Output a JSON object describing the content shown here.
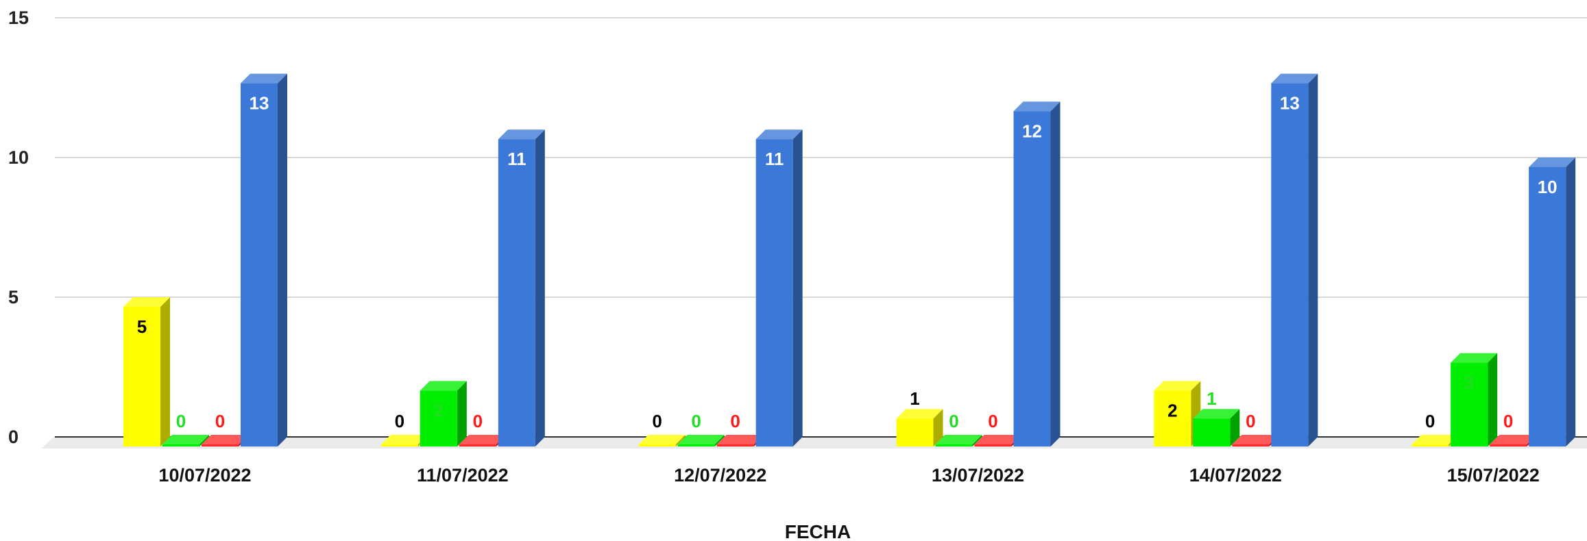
{
  "chart_data": {
    "type": "bar",
    "style": "3d-column",
    "title": "",
    "xlabel": "FECHA",
    "ylabel": "",
    "ylim": [
      0,
      15
    ],
    "yticks": [
      0,
      5,
      10,
      15
    ],
    "grid": true,
    "legend": "none",
    "categories": [
      "10/07/2022",
      "11/07/2022",
      "12/07/2022",
      "13/07/2022",
      "14/07/2022",
      "15/07/2022"
    ],
    "series": [
      {
        "color": "#ffff00",
        "label_color": "#000000",
        "values": [
          5,
          0,
          0,
          1,
          2,
          0
        ]
      },
      {
        "color": "#00ee00",
        "label_color": "#22dd22",
        "values": [
          0,
          2,
          0,
          0,
          1,
          3
        ]
      },
      {
        "color": "#ff2a2a",
        "label_color": "#ff1a1a",
        "values": [
          0,
          0,
          0,
          0,
          0,
          0
        ]
      },
      {
        "color": "#3c78d8",
        "label_color": "#ffffff",
        "values": [
          13,
          11,
          11,
          12,
          13,
          10
        ]
      }
    ]
  }
}
